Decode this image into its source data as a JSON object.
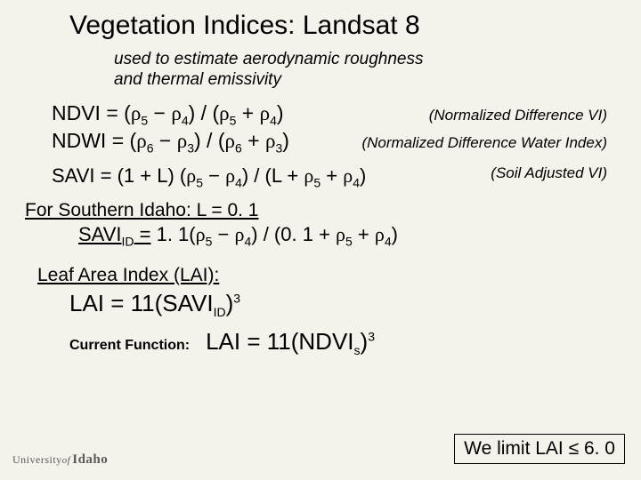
{
  "title": "Vegetation Indices: Landsat 8",
  "subtitle_line1": "used to estimate aerodynamic roughness",
  "subtitle_line2": "and thermal emissivity",
  "ndvi": {
    "lhs": "NDVI = ",
    "note": "(Normalized Difference VI)"
  },
  "ndwi": {
    "lhs": "NDWI = ",
    "note": "(Normalized Difference Water Index)"
  },
  "savi": {
    "lhs": "SAVI = ",
    "note": "(Soil Adjusted VI)"
  },
  "southern_idaho": "For Southern Idaho: L = 0. 1",
  "savi_id_lhs": "SAVI",
  "lai_header": "Leaf Area Index  (LAI):",
  "lai_formula_lhs": "LAI = 11(SAVI",
  "current_label": "Current Function:",
  "current_formula_lhs": "LAI = 11(NDVI",
  "limit_text": "We limit LAI ",
  "limit_value": " 6. 0",
  "logo": {
    "university": "University",
    "of": "of",
    "idaho": "Idaho"
  },
  "colors": {
    "bg": "#f5f2ec",
    "text": "#000000",
    "logo": "#5a5a5a"
  }
}
